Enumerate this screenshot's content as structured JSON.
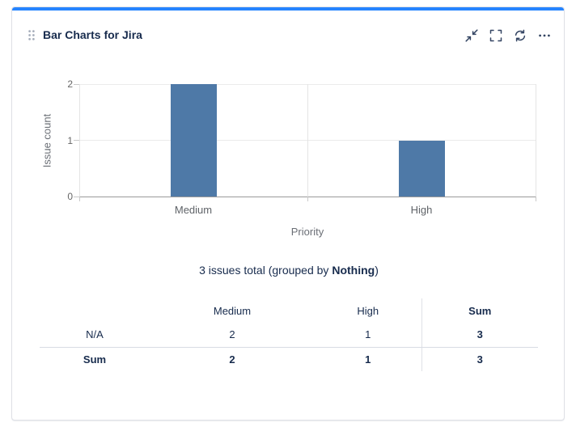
{
  "card": {
    "title": "Bar Charts for Jira",
    "accent_color": "#2684FF",
    "toolbar": {
      "collapse_tooltip": "Collapse",
      "fullscreen_tooltip": "Full screen",
      "refresh_tooltip": "Refresh",
      "more_tooltip": "More options"
    }
  },
  "chart_data": {
    "type": "bar",
    "categories": [
      "Medium",
      "High"
    ],
    "values": [
      2,
      1
    ],
    "title": "",
    "xlabel": "Priority",
    "ylabel": "Issue count",
    "yticks": [
      0,
      1,
      2
    ],
    "ylim": [
      0,
      2
    ],
    "bar_color": "#4e79a7",
    "grid": true,
    "legend": "none"
  },
  "summary": {
    "prefix": "3 issues total (grouped by ",
    "group_by": "Nothing",
    "suffix": ")"
  },
  "table": {
    "headers": [
      "",
      "Medium",
      "High",
      "Sum"
    ],
    "rows": [
      {
        "label": "N/A",
        "values": [
          "2",
          "1",
          "3"
        ]
      },
      {
        "label": "Sum",
        "values": [
          "2",
          "1",
          "3"
        ]
      }
    ]
  },
  "colors": {
    "accent": "#2684FF",
    "text_primary": "#172b4d",
    "text_muted": "#6b6f76",
    "icon": "#344563",
    "bar": "#4e79a7",
    "card_border": "#dfe1e6"
  }
}
